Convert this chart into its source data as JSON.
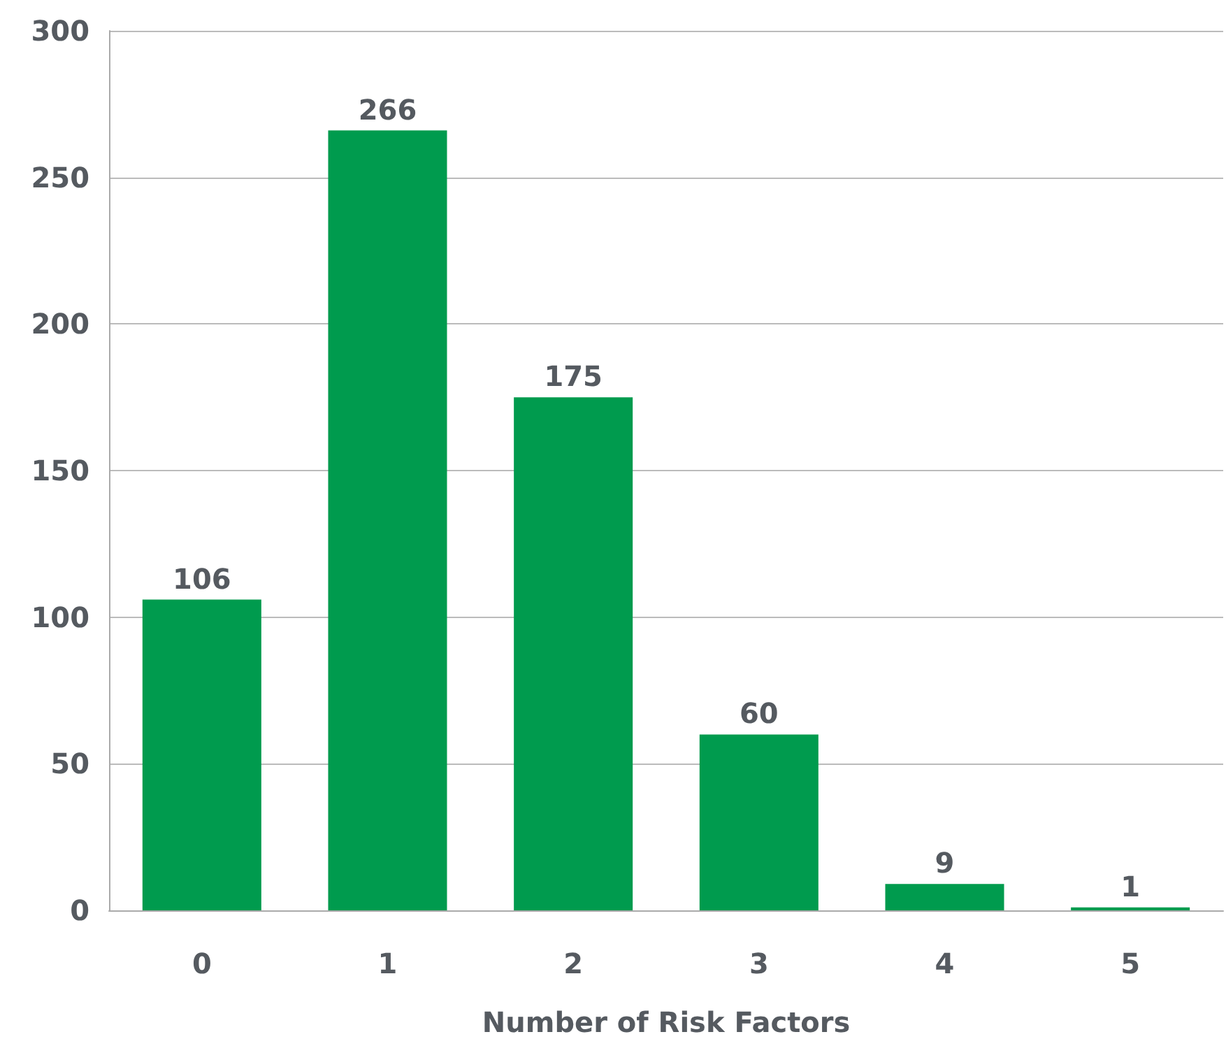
{
  "chart_data": {
    "type": "bar",
    "xlabel": "Number of Risk Factors",
    "categories": [
      "0",
      "1",
      "2",
      "3",
      "4",
      "5"
    ],
    "values": [
      106,
      266,
      175,
      60,
      9,
      1
    ],
    "color": "#009b4e",
    "ylim": [
      0,
      300
    ],
    "yticks": [
      0,
      50,
      100,
      150,
      200,
      250,
      300
    ],
    "grid": "y",
    "data_labels": true
  }
}
